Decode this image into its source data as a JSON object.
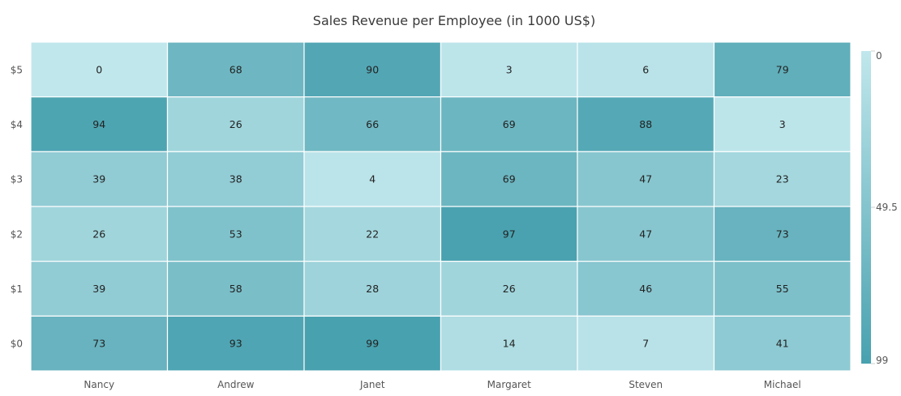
{
  "chart_data": {
    "type": "heatmap",
    "title": "Sales Revenue per Employee (in 1000 US$)",
    "x_categories": [
      "Nancy",
      "Andrew",
      "Janet",
      "Margaret",
      "Steven",
      "Michael"
    ],
    "y_categories": [
      "$5",
      "$4",
      "$3",
      "$2",
      "$1",
      "$0"
    ],
    "values": [
      [
        0,
        68,
        90,
        3,
        6,
        79
      ],
      [
        94,
        26,
        66,
        69,
        88,
        3
      ],
      [
        39,
        38,
        4,
        69,
        47,
        23
      ],
      [
        26,
        53,
        22,
        97,
        47,
        73
      ],
      [
        39,
        58,
        28,
        26,
        46,
        55
      ],
      [
        73,
        93,
        99,
        14,
        7,
        41
      ]
    ],
    "color_scale": {
      "min": 0,
      "max": 99,
      "min_color": "#c0e7ec",
      "max_color": "#48a1af"
    },
    "legend": {
      "position": "right",
      "labels": [
        "0",
        "49.5",
        "99"
      ]
    },
    "grid": false
  }
}
